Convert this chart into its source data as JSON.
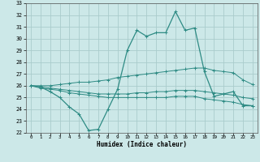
{
  "xlabel": "Humidex (Indice chaleur)",
  "x": [
    0,
    1,
    2,
    3,
    4,
    5,
    6,
    7,
    8,
    9,
    10,
    11,
    12,
    13,
    14,
    15,
    16,
    17,
    18,
    19,
    20,
    21,
    22,
    23
  ],
  "line_main": [
    26.0,
    25.9,
    25.5,
    25.0,
    24.2,
    23.6,
    22.2,
    22.3,
    24.0,
    25.7,
    29.0,
    30.7,
    30.2,
    30.5,
    30.5,
    32.3,
    30.7,
    30.9,
    27.2,
    25.1,
    25.3,
    25.5,
    24.3,
    24.3
  ],
  "line_upper": [
    26.0,
    26.0,
    26.0,
    26.1,
    26.2,
    26.3,
    26.3,
    26.4,
    26.5,
    26.7,
    26.8,
    26.9,
    27.0,
    27.1,
    27.2,
    27.3,
    27.4,
    27.5,
    27.5,
    27.3,
    27.2,
    27.1,
    26.5,
    26.1
  ],
  "line_mid": [
    26.0,
    25.9,
    25.8,
    25.7,
    25.6,
    25.5,
    25.4,
    25.3,
    25.3,
    25.3,
    25.3,
    25.4,
    25.4,
    25.5,
    25.5,
    25.6,
    25.6,
    25.6,
    25.5,
    25.4,
    25.3,
    25.2,
    25.0,
    24.9
  ],
  "line_lower": [
    26.0,
    25.8,
    25.7,
    25.6,
    25.4,
    25.3,
    25.2,
    25.1,
    25.0,
    25.0,
    25.0,
    25.0,
    25.0,
    25.0,
    25.0,
    25.1,
    25.1,
    25.1,
    24.9,
    24.8,
    24.7,
    24.6,
    24.4,
    24.3
  ],
  "ylim": [
    22,
    33
  ],
  "xlim": [
    -0.5,
    23.5
  ],
  "yticks": [
    22,
    23,
    24,
    25,
    26,
    27,
    28,
    29,
    30,
    31,
    32,
    33
  ],
  "xticks": [
    0,
    1,
    2,
    3,
    4,
    5,
    6,
    7,
    8,
    9,
    10,
    11,
    12,
    13,
    14,
    15,
    16,
    17,
    18,
    19,
    20,
    21,
    22,
    23
  ],
  "line_color": "#2e8b84",
  "bg_color": "#cce8e8",
  "grid_color": "#aacccc"
}
